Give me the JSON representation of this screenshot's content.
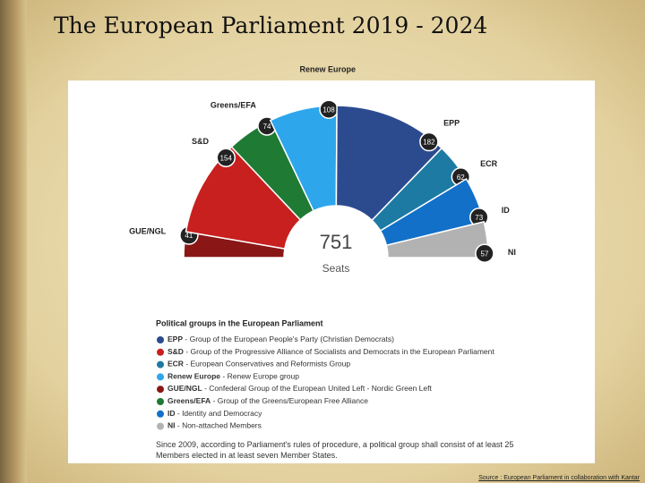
{
  "slide_title": "The European Parliament 2019 - 2024",
  "chart_data": {
    "type": "semidonut",
    "series": [
      {
        "name": "GUE/NGL",
        "color": "#8a1616",
        "value": 41
      },
      {
        "name": "S&D",
        "color": "#c81f1f",
        "value": 154
      },
      {
        "name": "Greens/EFA",
        "color": "#1f7a33",
        "value": 74
      },
      {
        "name": "Renew Europe",
        "color": "#2ea6ec",
        "value": 108
      },
      {
        "name": "EPP",
        "color": "#2c4b8f",
        "value": 182
      },
      {
        "name": "ECR",
        "color": "#1d7aa3",
        "value": 62
      },
      {
        "name": "ID",
        "color": "#1270c8",
        "value": 73
      },
      {
        "name": "NI",
        "color": "#b2b2b2",
        "value": 57
      }
    ],
    "total": 751,
    "total_label": "Seats",
    "legend": {
      "title": "Political groups in the European Parliament",
      "items": [
        {
          "name": "EPP",
          "color": "#2c4b8f",
          "description": "Group of the European People's Party (Christian Democrats)"
        },
        {
          "name": "S&D",
          "color": "#c81f1f",
          "description": "Group of the Progressive Alliance of Socialists and Democrats in the European Parliament"
        },
        {
          "name": "ECR",
          "color": "#1d7aa3",
          "description": "European Conservatives and Reformists Group"
        },
        {
          "name": "Renew Europe",
          "color": "#2ea6ec",
          "description": "Renew Europe group"
        },
        {
          "name": "GUE/NGL",
          "color": "#8a1616",
          "description": "Confederal Group of the European United Left - Nordic Green Left"
        },
        {
          "name": "Greens/EFA",
          "color": "#1f7a33",
          "description": "Group of the Greens/European Free Alliance"
        },
        {
          "name": "ID",
          "color": "#1270c8",
          "description": "Identity and Democracy"
        },
        {
          "name": "NI",
          "color": "#b2b2b2",
          "description": "Non-attached Members"
        }
      ]
    },
    "footnote": "Since 2009, according to Parliament's rules of procedure, a political group shall consist of at least 25 Members elected in at least seven Member States.",
    "source": "Source : European Parliament in collaboration with Kantar"
  }
}
